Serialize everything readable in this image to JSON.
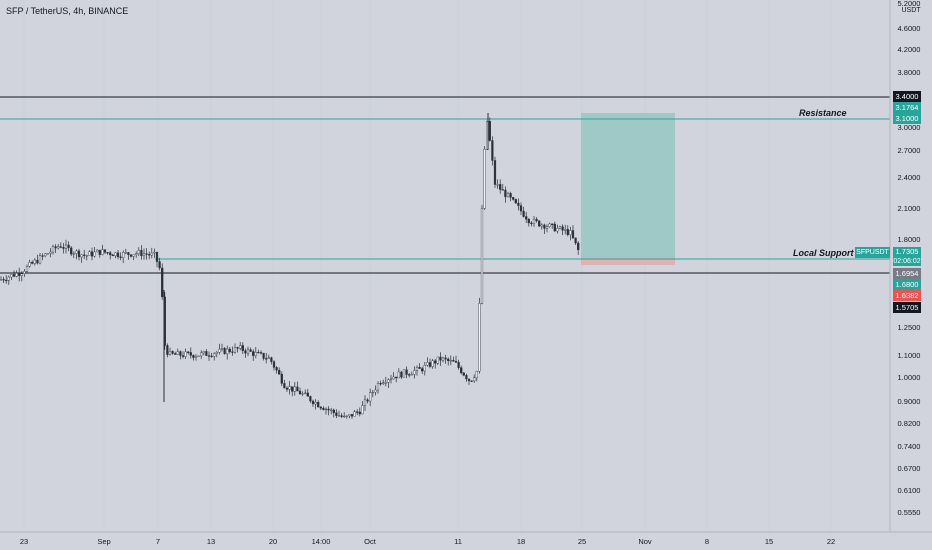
{
  "header": {
    "title": "SFP / TetherUS, 4h, BINANCE"
  },
  "axis": {
    "currency": "USDT",
    "y_ticks": [
      "5.2000",
      "4.6000",
      "4.2000",
      "3.8000",
      "3.0000",
      "2.7000",
      "2.4000",
      "2.1000",
      "1.8000",
      "1.2500",
      "1.1000",
      "1.0000",
      "0.9000",
      "0.8200",
      "0.7400",
      "0.6700",
      "0.6100",
      "0.5550"
    ],
    "x_ticks": [
      "23",
      "Sep",
      "7",
      "13",
      "20",
      "14:00",
      "Oct",
      "11",
      "18",
      "25",
      "Nov",
      "8",
      "15",
      "22"
    ]
  },
  "price_badges": {
    "resistance_top": "3.4000",
    "r2": "3.1764",
    "r1": "3.1000",
    "current": "1.7305",
    "countdown": "02:06:02",
    "support": "1.6954",
    "b1": "1.6800",
    "b2": "1.6382",
    "b3": "1.5705"
  },
  "annotations": {
    "resistance": "Resistance",
    "support": "Local Support",
    "symbol": "SFPUSDT"
  },
  "colors": {
    "background": "#d1d4dc",
    "up": "#26a69a",
    "down": "#ef5350",
    "candle": "#2a2e39",
    "grid": "#c8cbd3"
  },
  "chart_data": {
    "type": "candlestick",
    "y_scale": "log",
    "ylim": [
      0.52,
      5.2
    ],
    "path_x": [
      0,
      20,
      40,
      60,
      70,
      85,
      100,
      120,
      140,
      155,
      160,
      162,
      165,
      170,
      200,
      240,
      270,
      285,
      300,
      320,
      345,
      360,
      380,
      400,
      420,
      440,
      455,
      470,
      478,
      481,
      484,
      487,
      490,
      495,
      510,
      530,
      550,
      570,
      580
    ],
    "path_y": [
      1.55,
      1.6,
      1.7,
      1.8,
      1.76,
      1.72,
      1.75,
      1.73,
      1.74,
      1.72,
      1.62,
      1.45,
      1.15,
      1.12,
      1.12,
      1.15,
      1.1,
      0.98,
      0.95,
      0.9,
      0.85,
      0.88,
      1.0,
      1.03,
      1.05,
      1.1,
      1.08,
      1.0,
      1.05,
      1.9,
      2.6,
      3.1,
      2.8,
      2.35,
      2.2,
      2.0,
      1.95,
      1.9,
      1.73
    ]
  }
}
